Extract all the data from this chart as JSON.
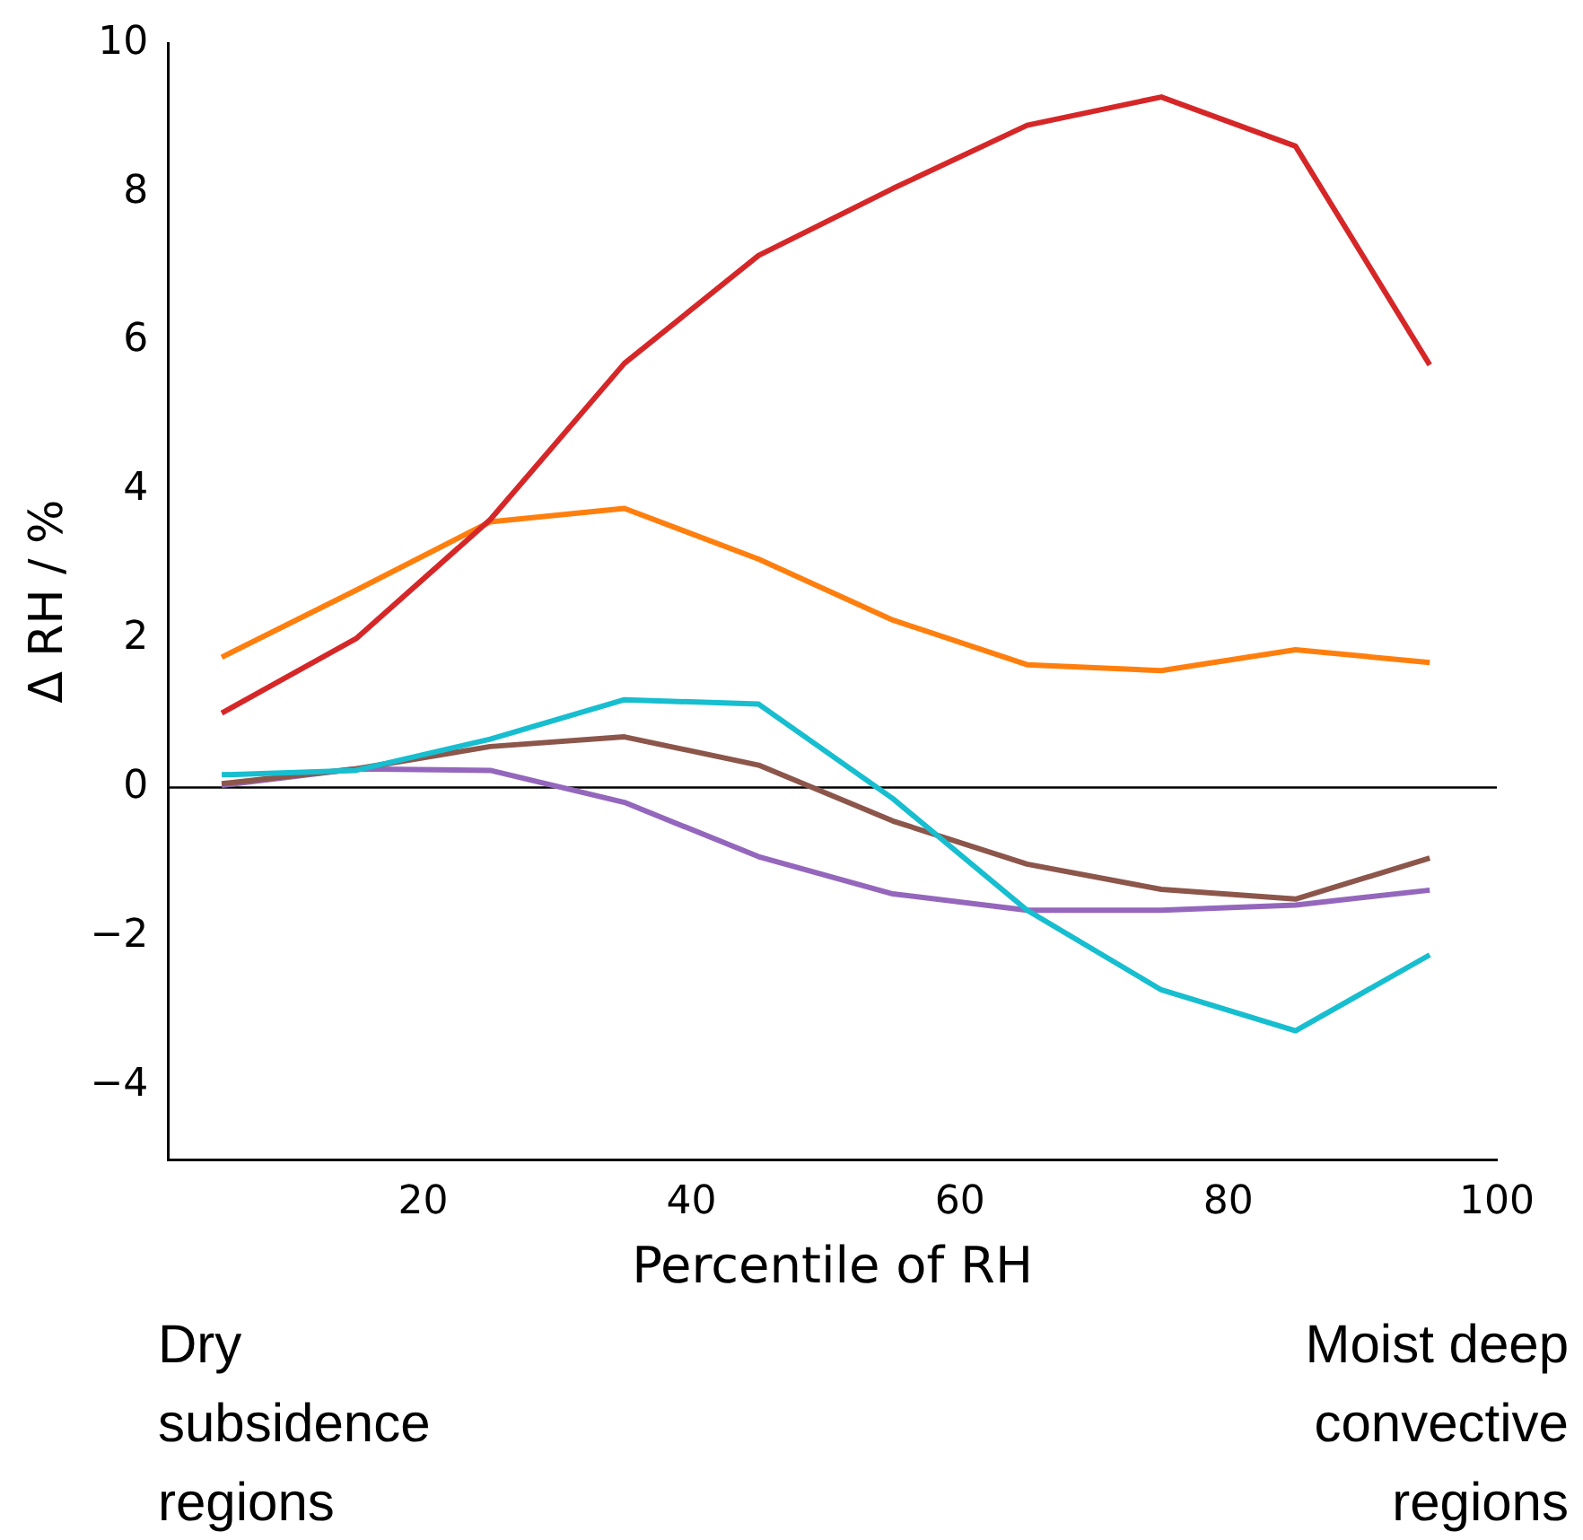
{
  "chart_data": {
    "type": "line",
    "xlabel": "Percentile of RH",
    "ylabel": "Δ RH / %",
    "x": [
      5,
      15,
      25,
      35,
      45,
      55,
      65,
      75,
      85,
      95
    ],
    "series": [
      {
        "color": "#d62728",
        "values": [
          1.0,
          2.0,
          3.6,
          5.7,
          7.15,
          8.05,
          8.9,
          9.28,
          8.62,
          5.68
        ]
      },
      {
        "color": "#ff7f0e",
        "values": [
          1.75,
          2.65,
          3.57,
          3.75,
          3.07,
          2.25,
          1.65,
          1.57,
          1.85,
          1.68
        ]
      },
      {
        "color": "#17becf",
        "values": [
          0.17,
          0.23,
          0.65,
          1.18,
          1.12,
          -0.15,
          -1.65,
          -2.72,
          -3.27,
          -2.25
        ]
      },
      {
        "color": "#8c564b",
        "values": [
          0.05,
          0.25,
          0.55,
          0.68,
          0.3,
          -0.45,
          -1.03,
          -1.37,
          -1.5,
          -0.95
        ]
      },
      {
        "color": "#9467bd",
        "values": [
          0.03,
          0.25,
          0.23,
          -0.2,
          -0.93,
          -1.43,
          -1.65,
          -1.65,
          -1.58,
          -1.38
        ]
      }
    ],
    "xlim": [
      1,
      100
    ],
    "xticks": [
      20,
      40,
      60,
      80,
      100
    ],
    "ylim": [
      -5,
      10
    ],
    "yticks": [
      {
        "value": -4,
        "label": "−4"
      },
      {
        "value": -2,
        "label": "−2"
      },
      0,
      2,
      4,
      6,
      8,
      10
    ],
    "ref_lines": [
      {
        "axis": "y",
        "value": 0,
        "color": "#000000"
      }
    ],
    "grid": false,
    "legend": false,
    "marker": "none",
    "line_style": "solid",
    "annotations": [
      "Dry\nsubsidence\nregions",
      "Moist deep\nconvective\nregions"
    ]
  }
}
